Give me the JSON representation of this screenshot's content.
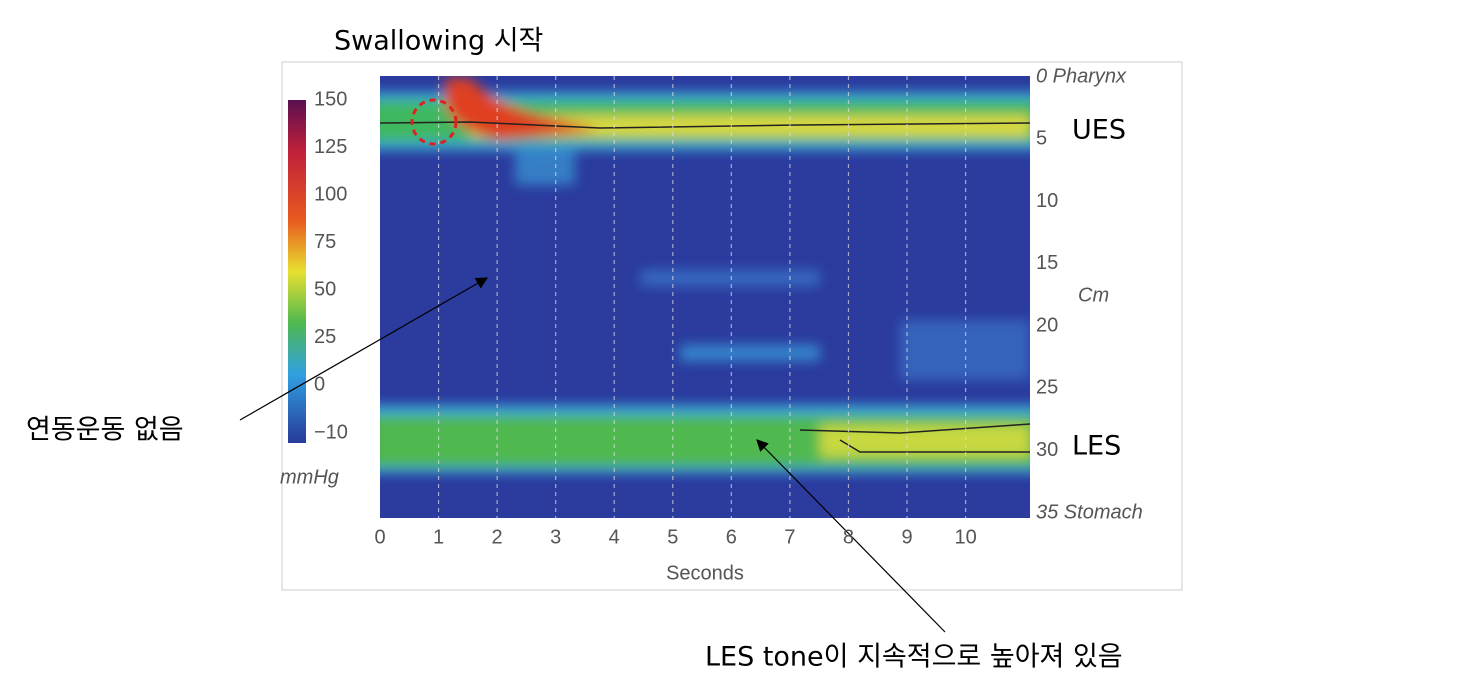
{
  "figure": {
    "colorbar": {
      "ticks": [
        150,
        125,
        100,
        75,
        50,
        25,
        0,
        {
          "value": -10,
          "label": "−10"
        }
      ],
      "unit": "mmHg"
    },
    "x_axis": {
      "label": "Seconds",
      "ticks": [
        0,
        1,
        2,
        3,
        4,
        5,
        6,
        7,
        8,
        9,
        10
      ],
      "xlim": [
        0,
        11.1
      ]
    },
    "y_axis": {
      "label": "Cm",
      "ticks": [
        {
          "value": 0,
          "label": "0 Pharynx"
        },
        5,
        10,
        15,
        20,
        25,
        30,
        {
          "value": 35,
          "label": "35 Stomach"
        }
      ],
      "ylim": [
        0,
        35
      ]
    }
  },
  "annotations": {
    "swallow": "Swallowing 시작",
    "ues": "UES",
    "les": "LES",
    "no_peristalsis": "연동운동 없음",
    "les_tone": "LES tone이 지속적으로 높아져 있음"
  }
}
